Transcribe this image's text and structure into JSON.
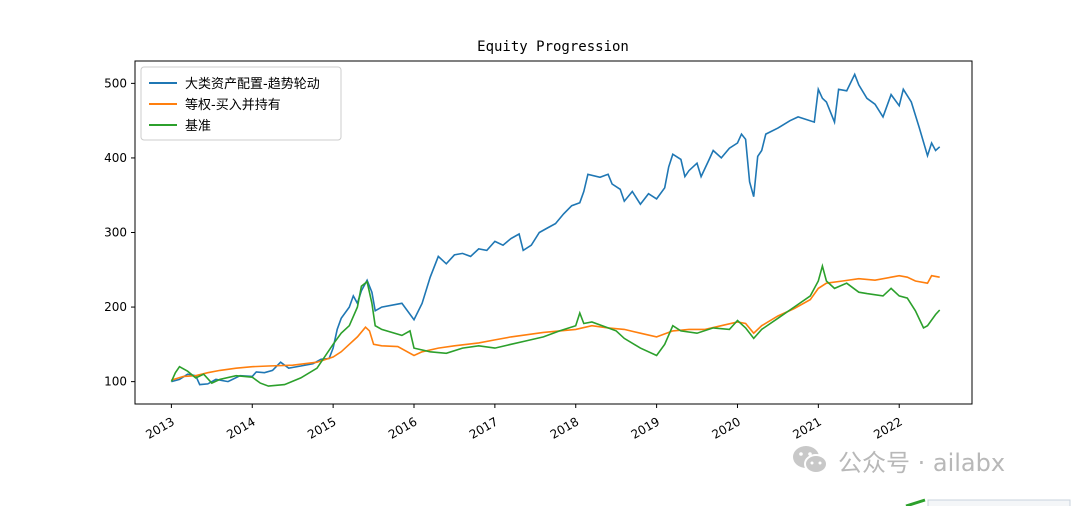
{
  "watermark": {
    "text": "公众号 · ailabx"
  },
  "chart_data": {
    "type": "line",
    "title": "Equity Progression",
    "xlabel": "",
    "ylabel": "",
    "xlim": [
      2012.55,
      2022.9
    ],
    "ylim": [
      70,
      530
    ],
    "yticks": [
      100,
      200,
      300,
      400,
      500
    ],
    "xticks": [
      "2013",
      "2014",
      "2015",
      "2016",
      "2017",
      "2018",
      "2019",
      "2020",
      "2021",
      "2022"
    ],
    "legend_position": "top-left",
    "grid": false,
    "series": [
      {
        "name": "大类资产配置-趋势轮动",
        "color": "#1f77b4",
        "points": [
          [
            2013.0,
            100
          ],
          [
            2013.1,
            103
          ],
          [
            2013.2,
            110
          ],
          [
            2013.3,
            108
          ],
          [
            2013.35,
            96
          ],
          [
            2013.45,
            97
          ],
          [
            2013.55,
            103
          ],
          [
            2013.7,
            100
          ],
          [
            2013.85,
            108
          ],
          [
            2014.0,
            107
          ],
          [
            2014.05,
            113
          ],
          [
            2014.15,
            112
          ],
          [
            2014.25,
            115
          ],
          [
            2014.35,
            126
          ],
          [
            2014.45,
            118
          ],
          [
            2014.6,
            121
          ],
          [
            2014.75,
            124
          ],
          [
            2014.85,
            130
          ],
          [
            2014.95,
            131
          ],
          [
            2015.0,
            145
          ],
          [
            2015.05,
            170
          ],
          [
            2015.1,
            185
          ],
          [
            2015.2,
            200
          ],
          [
            2015.25,
            215
          ],
          [
            2015.3,
            205
          ],
          [
            2015.35,
            222
          ],
          [
            2015.42,
            236
          ],
          [
            2015.48,
            220
          ],
          [
            2015.52,
            195
          ],
          [
            2015.6,
            200
          ],
          [
            2015.85,
            205
          ],
          [
            2016.0,
            183
          ],
          [
            2016.1,
            205
          ],
          [
            2016.2,
            240
          ],
          [
            2016.3,
            268
          ],
          [
            2016.4,
            258
          ],
          [
            2016.5,
            270
          ],
          [
            2016.6,
            272
          ],
          [
            2016.7,
            268
          ],
          [
            2016.8,
            278
          ],
          [
            2016.9,
            276
          ],
          [
            2017.0,
            288
          ],
          [
            2017.1,
            283
          ],
          [
            2017.2,
            292
          ],
          [
            2017.3,
            298
          ],
          [
            2017.35,
            276
          ],
          [
            2017.45,
            283
          ],
          [
            2017.55,
            300
          ],
          [
            2017.65,
            306
          ],
          [
            2017.75,
            312
          ],
          [
            2017.85,
            325
          ],
          [
            2017.95,
            336
          ],
          [
            2018.05,
            340
          ],
          [
            2018.1,
            355
          ],
          [
            2018.15,
            378
          ],
          [
            2018.3,
            374
          ],
          [
            2018.4,
            378
          ],
          [
            2018.45,
            365
          ],
          [
            2018.55,
            358
          ],
          [
            2018.6,
            342
          ],
          [
            2018.7,
            355
          ],
          [
            2018.8,
            338
          ],
          [
            2018.9,
            352
          ],
          [
            2019.0,
            345
          ],
          [
            2019.1,
            360
          ],
          [
            2019.15,
            388
          ],
          [
            2019.2,
            405
          ],
          [
            2019.3,
            398
          ],
          [
            2019.35,
            375
          ],
          [
            2019.4,
            383
          ],
          [
            2019.5,
            393
          ],
          [
            2019.55,
            375
          ],
          [
            2019.65,
            398
          ],
          [
            2019.7,
            410
          ],
          [
            2019.8,
            400
          ],
          [
            2019.9,
            413
          ],
          [
            2020.0,
            420
          ],
          [
            2020.05,
            432
          ],
          [
            2020.1,
            425
          ],
          [
            2020.15,
            368
          ],
          [
            2020.2,
            348
          ],
          [
            2020.25,
            402
          ],
          [
            2020.3,
            410
          ],
          [
            2020.35,
            432
          ],
          [
            2020.5,
            440
          ],
          [
            2020.65,
            450
          ],
          [
            2020.75,
            455
          ],
          [
            2020.95,
            448
          ],
          [
            2021.0,
            492
          ],
          [
            2021.05,
            480
          ],
          [
            2021.1,
            475
          ],
          [
            2021.2,
            448
          ],
          [
            2021.25,
            492
          ],
          [
            2021.35,
            490
          ],
          [
            2021.45,
            512
          ],
          [
            2021.5,
            498
          ],
          [
            2021.6,
            480
          ],
          [
            2021.7,
            472
          ],
          [
            2021.8,
            455
          ],
          [
            2021.9,
            485
          ],
          [
            2022.0,
            470
          ],
          [
            2022.05,
            492
          ],
          [
            2022.15,
            475
          ],
          [
            2022.25,
            440
          ],
          [
            2022.35,
            403
          ],
          [
            2022.4,
            420
          ],
          [
            2022.45,
            410
          ],
          [
            2022.5,
            415
          ]
        ]
      },
      {
        "name": "等权-买入并持有",
        "color": "#ff7f0e",
        "points": [
          [
            2013.0,
            102
          ],
          [
            2013.15,
            107
          ],
          [
            2013.3,
            108
          ],
          [
            2013.45,
            112
          ],
          [
            2013.6,
            115
          ],
          [
            2013.8,
            118
          ],
          [
            2014.0,
            120
          ],
          [
            2014.2,
            121
          ],
          [
            2014.5,
            122
          ],
          [
            2014.8,
            126
          ],
          [
            2015.0,
            133
          ],
          [
            2015.1,
            140
          ],
          [
            2015.2,
            150
          ],
          [
            2015.3,
            160
          ],
          [
            2015.4,
            173
          ],
          [
            2015.45,
            168
          ],
          [
            2015.5,
            150
          ],
          [
            2015.6,
            148
          ],
          [
            2015.8,
            147
          ],
          [
            2016.0,
            135
          ],
          [
            2016.1,
            140
          ],
          [
            2016.3,
            145
          ],
          [
            2016.5,
            148
          ],
          [
            2016.8,
            152
          ],
          [
            2017.0,
            156
          ],
          [
            2017.2,
            160
          ],
          [
            2017.4,
            163
          ],
          [
            2017.6,
            166
          ],
          [
            2017.8,
            168
          ],
          [
            2018.0,
            170
          ],
          [
            2018.2,
            175
          ],
          [
            2018.4,
            172
          ],
          [
            2018.6,
            170
          ],
          [
            2018.8,
            165
          ],
          [
            2019.0,
            160
          ],
          [
            2019.2,
            168
          ],
          [
            2019.4,
            170
          ],
          [
            2019.6,
            170
          ],
          [
            2019.8,
            175
          ],
          [
            2020.0,
            180
          ],
          [
            2020.1,
            178
          ],
          [
            2020.2,
            165
          ],
          [
            2020.3,
            175
          ],
          [
            2020.5,
            188
          ],
          [
            2020.7,
            198
          ],
          [
            2020.9,
            210
          ],
          [
            2021.0,
            225
          ],
          [
            2021.1,
            232
          ],
          [
            2021.3,
            235
          ],
          [
            2021.5,
            238
          ],
          [
            2021.7,
            236
          ],
          [
            2021.9,
            240
          ],
          [
            2022.0,
            242
          ],
          [
            2022.1,
            240
          ],
          [
            2022.2,
            235
          ],
          [
            2022.35,
            232
          ],
          [
            2022.4,
            242
          ],
          [
            2022.5,
            240
          ]
        ]
      },
      {
        "name": "基准",
        "color": "#2ca02c",
        "points": [
          [
            2013.0,
            100
          ],
          [
            2013.05,
            112
          ],
          [
            2013.1,
            120
          ],
          [
            2013.2,
            114
          ],
          [
            2013.3,
            105
          ],
          [
            2013.4,
            110
          ],
          [
            2013.5,
            98
          ],
          [
            2013.6,
            103
          ],
          [
            2013.8,
            108
          ],
          [
            2014.0,
            106
          ],
          [
            2014.1,
            98
          ],
          [
            2014.2,
            94
          ],
          [
            2014.4,
            96
          ],
          [
            2014.6,
            105
          ],
          [
            2014.8,
            118
          ],
          [
            2015.0,
            150
          ],
          [
            2015.1,
            165
          ],
          [
            2015.2,
            175
          ],
          [
            2015.3,
            200
          ],
          [
            2015.35,
            228
          ],
          [
            2015.42,
            234
          ],
          [
            2015.48,
            205
          ],
          [
            2015.52,
            175
          ],
          [
            2015.6,
            170
          ],
          [
            2015.85,
            162
          ],
          [
            2015.95,
            168
          ],
          [
            2016.0,
            145
          ],
          [
            2016.2,
            140
          ],
          [
            2016.4,
            138
          ],
          [
            2016.6,
            145
          ],
          [
            2016.8,
            148
          ],
          [
            2017.0,
            145
          ],
          [
            2017.2,
            150
          ],
          [
            2017.4,
            155
          ],
          [
            2017.6,
            160
          ],
          [
            2017.8,
            168
          ],
          [
            2018.0,
            175
          ],
          [
            2018.05,
            192
          ],
          [
            2018.1,
            178
          ],
          [
            2018.2,
            180
          ],
          [
            2018.4,
            172
          ],
          [
            2018.5,
            168
          ],
          [
            2018.6,
            158
          ],
          [
            2018.8,
            145
          ],
          [
            2019.0,
            135
          ],
          [
            2019.1,
            150
          ],
          [
            2019.2,
            175
          ],
          [
            2019.3,
            168
          ],
          [
            2019.5,
            165
          ],
          [
            2019.7,
            172
          ],
          [
            2019.9,
            170
          ],
          [
            2020.0,
            182
          ],
          [
            2020.1,
            172
          ],
          [
            2020.2,
            158
          ],
          [
            2020.3,
            170
          ],
          [
            2020.5,
            185
          ],
          [
            2020.7,
            200
          ],
          [
            2020.9,
            215
          ],
          [
            2021.0,
            235
          ],
          [
            2021.05,
            255
          ],
          [
            2021.1,
            235
          ],
          [
            2021.2,
            225
          ],
          [
            2021.35,
            232
          ],
          [
            2021.5,
            220
          ],
          [
            2021.6,
            218
          ],
          [
            2021.8,
            215
          ],
          [
            2021.9,
            225
          ],
          [
            2022.0,
            215
          ],
          [
            2022.1,
            212
          ],
          [
            2022.2,
            195
          ],
          [
            2022.3,
            172
          ],
          [
            2022.35,
            175
          ],
          [
            2022.45,
            190
          ],
          [
            2022.5,
            196
          ]
        ]
      }
    ]
  }
}
